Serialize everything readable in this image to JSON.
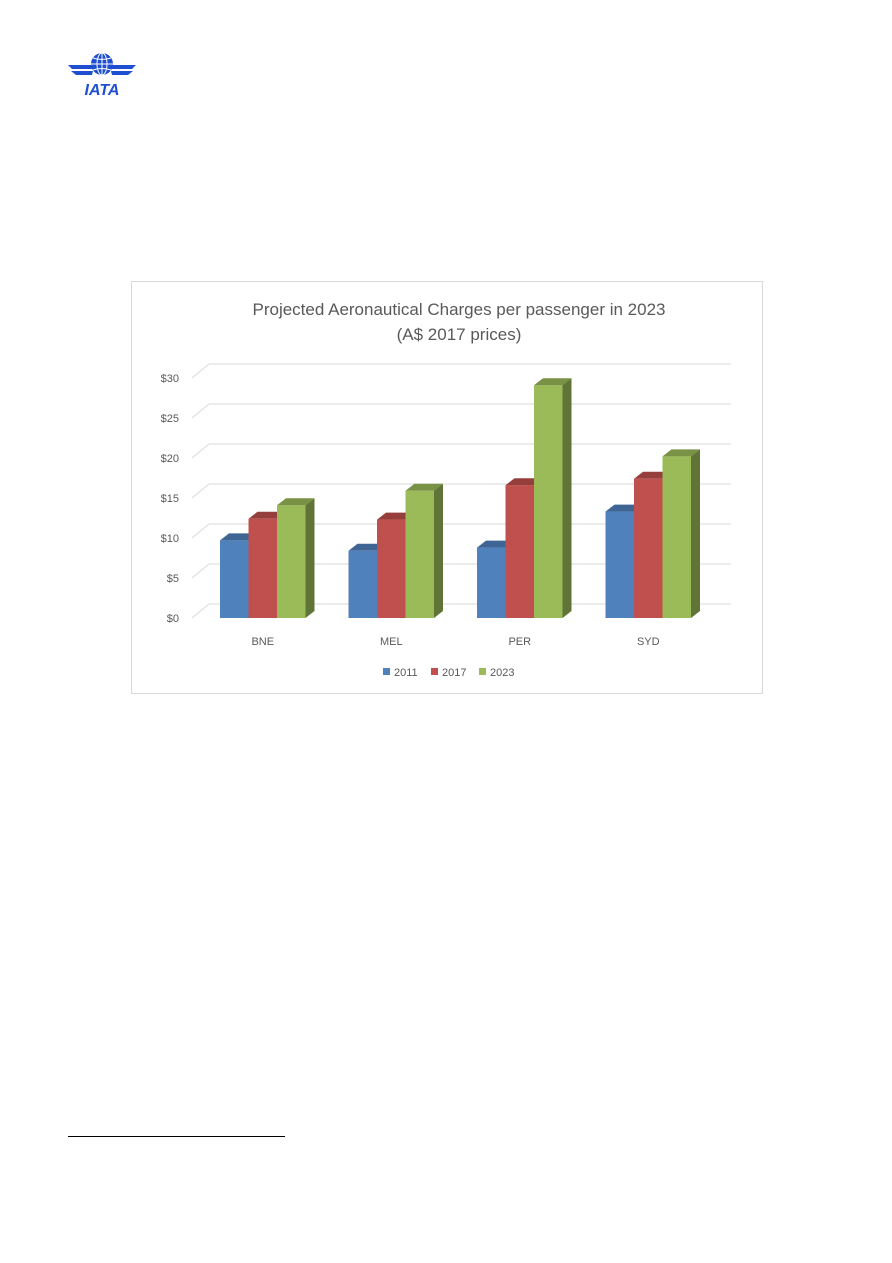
{
  "logo": {
    "text": "IATA",
    "icon": "iata-globe-wings-icon",
    "color": "#1f4fd1"
  },
  "chart_data": {
    "type": "bar",
    "title": "Projected Aeronautical Charges per passenger in 2023",
    "subtitle": "(A$ 2017 prices)",
    "categories": [
      "BNE",
      "MEL",
      "PER",
      "SYD"
    ],
    "series": [
      {
        "name": "2011",
        "values": [
          9.7,
          8.4,
          8.8,
          13.3
        ],
        "color": "#4f81bd"
      },
      {
        "name": "2017",
        "values": [
          12.4,
          12.3,
          16.6,
          17.4
        ],
        "color": "#c0504d"
      },
      {
        "name": "2023",
        "values": [
          14.1,
          15.9,
          29.1,
          20.2
        ],
        "color": "#9bbb59"
      }
    ],
    "ylim": [
      0,
      30
    ],
    "yticks": [
      "$0",
      "$5",
      "$10",
      "$15",
      "$20",
      "$25",
      "$30"
    ],
    "xlabel": "",
    "ylabel": "",
    "grid": true,
    "legend": "bottom"
  }
}
